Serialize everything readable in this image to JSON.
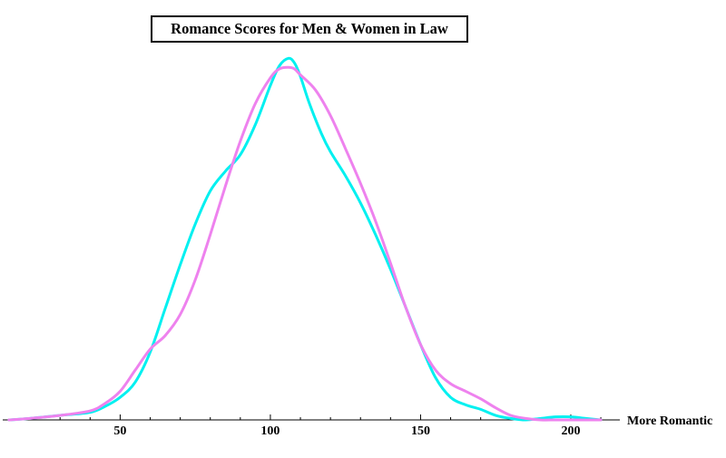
{
  "chart_data": {
    "type": "line",
    "title": "Romance Scores for Men & Women in Law",
    "xlabel": "More Romantic",
    "ylabel": "",
    "xlim": [
      10,
      213
    ],
    "ylim": [
      0,
      0.0245
    ],
    "xticks_major": [
      50,
      100,
      150,
      200
    ],
    "xticks_minor": [
      20,
      30,
      40,
      60,
      70,
      80,
      90,
      110,
      120,
      130,
      140,
      160,
      170,
      180,
      190,
      210
    ],
    "grid": false,
    "legend": "none",
    "series": [
      {
        "color": "#00f0f0",
        "x": [
          13,
          20,
          30,
          40,
          45,
          50,
          55,
          60,
          65,
          70,
          75,
          80,
          85,
          90,
          95,
          100,
          103,
          106,
          108,
          110,
          113,
          117,
          120,
          125,
          130,
          135,
          140,
          145,
          150,
          155,
          160,
          165,
          170,
          175,
          180,
          185,
          190,
          195,
          200,
          205,
          210
        ],
        "y": [
          0.0,
          0.0001,
          0.0003,
          0.0005,
          0.0009,
          0.0015,
          0.0025,
          0.0045,
          0.0074,
          0.0103,
          0.013,
          0.0152,
          0.0165,
          0.0176,
          0.0196,
          0.0222,
          0.0235,
          0.024,
          0.0237,
          0.0228,
          0.021,
          0.019,
          0.0178,
          0.0162,
          0.0144,
          0.0123,
          0.01,
          0.0075,
          0.005,
          0.0028,
          0.0015,
          0.001,
          0.0007,
          0.0003,
          0.0001,
          0.0,
          0.0001,
          0.0002,
          0.0002,
          0.0001,
          0.0
        ]
      },
      {
        "color": "#ee82ee",
        "x": [
          13,
          20,
          30,
          40,
          45,
          50,
          55,
          60,
          65,
          70,
          75,
          80,
          85,
          90,
          95,
          100,
          103,
          106,
          108,
          110,
          115,
          120,
          125,
          130,
          135,
          140,
          145,
          150,
          155,
          160,
          165,
          170,
          175,
          180,
          185,
          190,
          195,
          200,
          205,
          210
        ],
        "y": [
          0.0,
          0.0001,
          0.0003,
          0.0006,
          0.0011,
          0.0019,
          0.0033,
          0.0047,
          0.0056,
          0.007,
          0.0093,
          0.0123,
          0.0155,
          0.0185,
          0.021,
          0.0227,
          0.0233,
          0.0234,
          0.0233,
          0.0229,
          0.0219,
          0.0202,
          0.018,
          0.0157,
          0.0132,
          0.0104,
          0.0075,
          0.005,
          0.0033,
          0.0024,
          0.0019,
          0.0014,
          0.0008,
          0.0003,
          0.0001,
          0.0,
          0.0,
          0.0,
          0.0,
          0.0
        ]
      }
    ]
  }
}
